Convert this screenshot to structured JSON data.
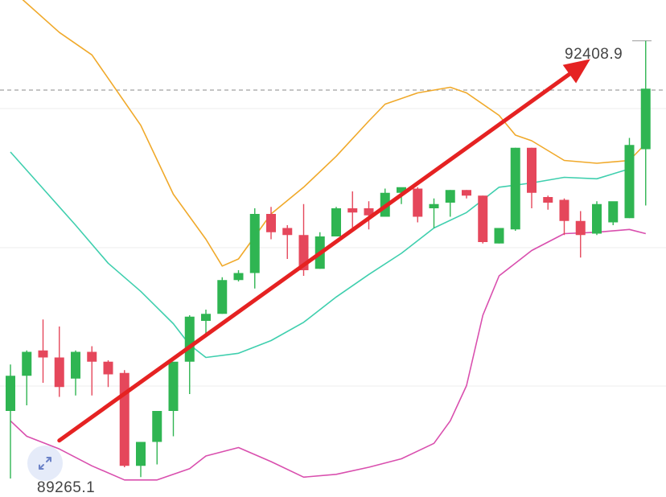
{
  "chart_data": {
    "type": "candlestick",
    "title": "",
    "xlabel": "",
    "ylabel": "",
    "ylim": [
      89180,
      92700
    ],
    "price_labels": {
      "high": "92408.9",
      "low": "89265.1"
    },
    "reference_line": 92060,
    "colors": {
      "up": "#2fb552",
      "down": "#e5475b",
      "ma_orange": "#f0a92a",
      "ma_teal": "#3fcfae",
      "ma_magenta": "#d94fae",
      "arrow": "#e52222",
      "grid": "#ececec",
      "dashed": "#8a8a8a"
    },
    "candles": [
      {
        "o": 89780,
        "h": 90110,
        "l": 89300,
        "c": 90030
      },
      {
        "o": 90030,
        "h": 90210,
        "l": 89820,
        "c": 90200
      },
      {
        "o": 90210,
        "h": 90430,
        "l": 89980,
        "c": 90160
      },
      {
        "o": 90160,
        "h": 90380,
        "l": 89880,
        "c": 89950
      },
      {
        "o": 90010,
        "h": 90210,
        "l": 89890,
        "c": 90200
      },
      {
        "o": 90200,
        "h": 90240,
        "l": 89890,
        "c": 90130
      },
      {
        "o": 90130,
        "h": 90140,
        "l": 89950,
        "c": 90040
      },
      {
        "o": 90050,
        "h": 90070,
        "l": 89380,
        "c": 89390
      },
      {
        "o": 89390,
        "h": 89550,
        "l": 89310,
        "c": 89560
      },
      {
        "o": 89560,
        "h": 89780,
        "l": 89400,
        "c": 89780
      },
      {
        "o": 89780,
        "h": 90100,
        "l": 89600,
        "c": 90130
      },
      {
        "o": 90130,
        "h": 90460,
        "l": 89900,
        "c": 90450
      },
      {
        "o": 90420,
        "h": 90500,
        "l": 90330,
        "c": 90470
      },
      {
        "o": 90470,
        "h": 90730,
        "l": 90470,
        "c": 90710
      },
      {
        "o": 90710,
        "h": 90780,
        "l": 90700,
        "c": 90760
      },
      {
        "o": 90760,
        "h": 91220,
        "l": 90650,
        "c": 91180
      },
      {
        "o": 91180,
        "h": 91230,
        "l": 91000,
        "c": 91050
      },
      {
        "o": 91080,
        "h": 91100,
        "l": 90860,
        "c": 91030
      },
      {
        "o": 91030,
        "h": 91250,
        "l": 90740,
        "c": 90780
      },
      {
        "o": 90790,
        "h": 91050,
        "l": 90790,
        "c": 91020
      },
      {
        "o": 91020,
        "h": 91230,
        "l": 91020,
        "c": 91220
      },
      {
        "o": 91220,
        "h": 91340,
        "l": 91080,
        "c": 91190
      },
      {
        "o": 91220,
        "h": 91270,
        "l": 91070,
        "c": 91170
      },
      {
        "o": 91160,
        "h": 91360,
        "l": 91160,
        "c": 91330
      },
      {
        "o": 91330,
        "h": 91350,
        "l": 91250,
        "c": 91370
      },
      {
        "o": 91360,
        "h": 91370,
        "l": 91120,
        "c": 91160
      },
      {
        "o": 91220,
        "h": 91290,
        "l": 91080,
        "c": 91250
      },
      {
        "o": 91260,
        "h": 91350,
        "l": 91160,
        "c": 91350
      },
      {
        "o": 91350,
        "h": 91350,
        "l": 91290,
        "c": 91310
      },
      {
        "o": 91310,
        "h": 91310,
        "l": 90970,
        "c": 90980
      },
      {
        "o": 90970,
        "h": 91080,
        "l": 90970,
        "c": 91080
      },
      {
        "o": 91070,
        "h": 91650,
        "l": 91060,
        "c": 91650
      },
      {
        "o": 91650,
        "h": 91650,
        "l": 91220,
        "c": 91330
      },
      {
        "o": 91300,
        "h": 91310,
        "l": 91210,
        "c": 91260
      },
      {
        "o": 91280,
        "h": 91290,
        "l": 91030,
        "c": 91130
      },
      {
        "o": 91130,
        "h": 91200,
        "l": 90870,
        "c": 91030
      },
      {
        "o": 91040,
        "h": 91270,
        "l": 91030,
        "c": 91250
      },
      {
        "o": 91120,
        "h": 91260,
        "l": 91100,
        "c": 91270
      },
      {
        "o": 91150,
        "h": 91720,
        "l": 91150,
        "c": 91670
      },
      {
        "o": 91640,
        "h": 92410,
        "l": 91240,
        "c": 92070
      }
    ],
    "lines": [
      {
        "color": "#f0a92a",
        "points": [
          [
            0,
            92780
          ],
          [
            3,
            92470
          ],
          [
            5,
            92310
          ],
          [
            8,
            91810
          ],
          [
            10,
            91320
          ],
          [
            12,
            91000
          ],
          [
            13,
            90810
          ],
          [
            14,
            90860
          ],
          [
            16,
            91180
          ],
          [
            18,
            91370
          ],
          [
            20,
            91590
          ],
          [
            22,
            91840
          ],
          [
            23,
            91960
          ],
          [
            25,
            92040
          ],
          [
            27,
            92080
          ],
          [
            28,
            92040
          ],
          [
            30,
            91880
          ],
          [
            31,
            91740
          ],
          [
            32,
            91700
          ],
          [
            34,
            91560
          ],
          [
            36,
            91540
          ],
          [
            38,
            91560
          ],
          [
            39,
            91680
          ]
        ]
      },
      {
        "color": "#3fcfae",
        "points": [
          [
            0,
            91620
          ],
          [
            2,
            91360
          ],
          [
            4,
            91100
          ],
          [
            6,
            90830
          ],
          [
            8,
            90630
          ],
          [
            10,
            90400
          ],
          [
            11,
            90250
          ],
          [
            12,
            90160
          ],
          [
            14,
            90190
          ],
          [
            16,
            90280
          ],
          [
            18,
            90410
          ],
          [
            20,
            90590
          ],
          [
            22,
            90750
          ],
          [
            24,
            90900
          ],
          [
            26,
            91080
          ],
          [
            28,
            91190
          ],
          [
            30,
            91370
          ],
          [
            32,
            91400
          ],
          [
            34,
            91440
          ],
          [
            36,
            91430
          ],
          [
            38,
            91500
          ]
        ]
      },
      {
        "color": "#d94fae",
        "points": [
          [
            0,
            89710
          ],
          [
            1,
            89600
          ],
          [
            3,
            89510
          ],
          [
            5,
            89390
          ],
          [
            7,
            89290
          ],
          [
            9,
            89290
          ],
          [
            11,
            89370
          ],
          [
            12,
            89460
          ],
          [
            14,
            89520
          ],
          [
            16,
            89420
          ],
          [
            18,
            89310
          ],
          [
            20,
            89330
          ],
          [
            22,
            89380
          ],
          [
            24,
            89440
          ],
          [
            26,
            89550
          ],
          [
            27,
            89710
          ],
          [
            28,
            89960
          ],
          [
            29,
            90460
          ],
          [
            30,
            90740
          ],
          [
            32,
            90920
          ],
          [
            34,
            91040
          ],
          [
            36,
            91050
          ],
          [
            38,
            91070
          ],
          [
            39,
            91040
          ]
        ]
      }
    ],
    "trend_arrow": {
      "from": [
        3,
        89570
      ],
      "to": [
        35.6,
        92280
      ]
    }
  },
  "icons": {
    "expand": "expand-arrows-icon"
  }
}
